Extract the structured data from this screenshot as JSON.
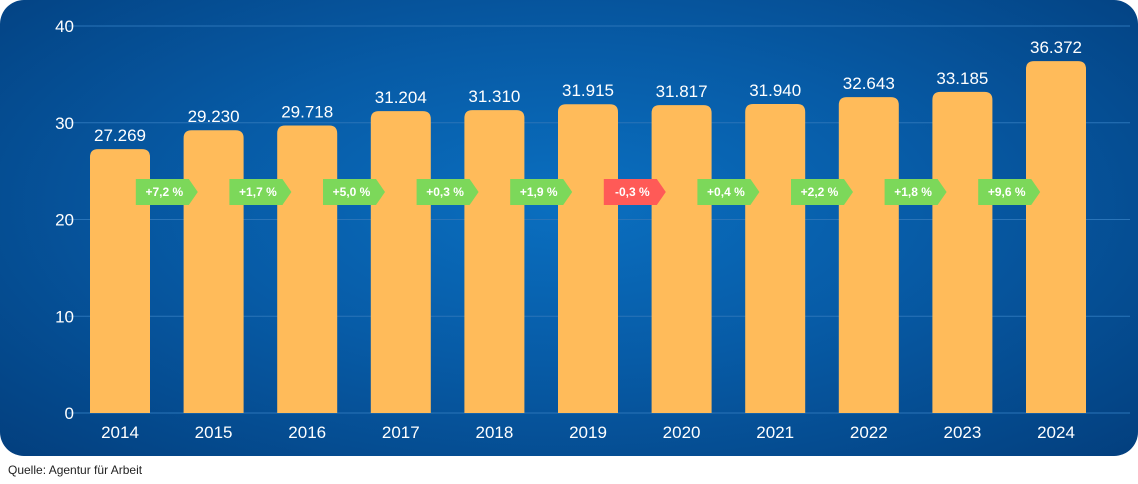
{
  "colors": {
    "bar": "#ffbb5a",
    "positive": "#7cd85a",
    "negative": "#ff5a57",
    "grid": "#2a74b8",
    "text": "#ffffff"
  },
  "chart_data": {
    "type": "bar",
    "title": "",
    "xlabel": "",
    "ylabel": "",
    "ylim": [
      0,
      40
    ],
    "yticks": [
      0,
      10,
      20,
      30,
      40
    ],
    "grid": true,
    "categories": [
      "2014",
      "2015",
      "2016",
      "2017",
      "2018",
      "2019",
      "2020",
      "2021",
      "2022",
      "2023",
      "2024"
    ],
    "values": [
      27.269,
      29.23,
      29.718,
      31.204,
      31.31,
      31.915,
      31.817,
      31.94,
      32.643,
      33.185,
      36.372
    ],
    "value_labels": [
      "27.269",
      "29.230",
      "29.718",
      "31.204",
      "31.310",
      "31.915",
      "31.817",
      "31.940",
      "32.643",
      "33.185",
      "36.372"
    ],
    "annotations": [
      {
        "text": "+7,2 %",
        "sign": "positive"
      },
      {
        "text": "+1,7 %",
        "sign": "positive"
      },
      {
        "text": "+5,0 %",
        "sign": "positive"
      },
      {
        "text": "+0,3 %",
        "sign": "positive"
      },
      {
        "text": "+1,9 %",
        "sign": "positive"
      },
      {
        "text": "-0,3 %",
        "sign": "negative"
      },
      {
        "text": "+0,4 %",
        "sign": "positive"
      },
      {
        "text": "+2,2 %",
        "sign": "positive"
      },
      {
        "text": "+1,8 %",
        "sign": "positive"
      },
      {
        "text": "+9,6 %",
        "sign": "positive"
      }
    ]
  },
  "source": "Quelle: Agentur für Arbeit"
}
